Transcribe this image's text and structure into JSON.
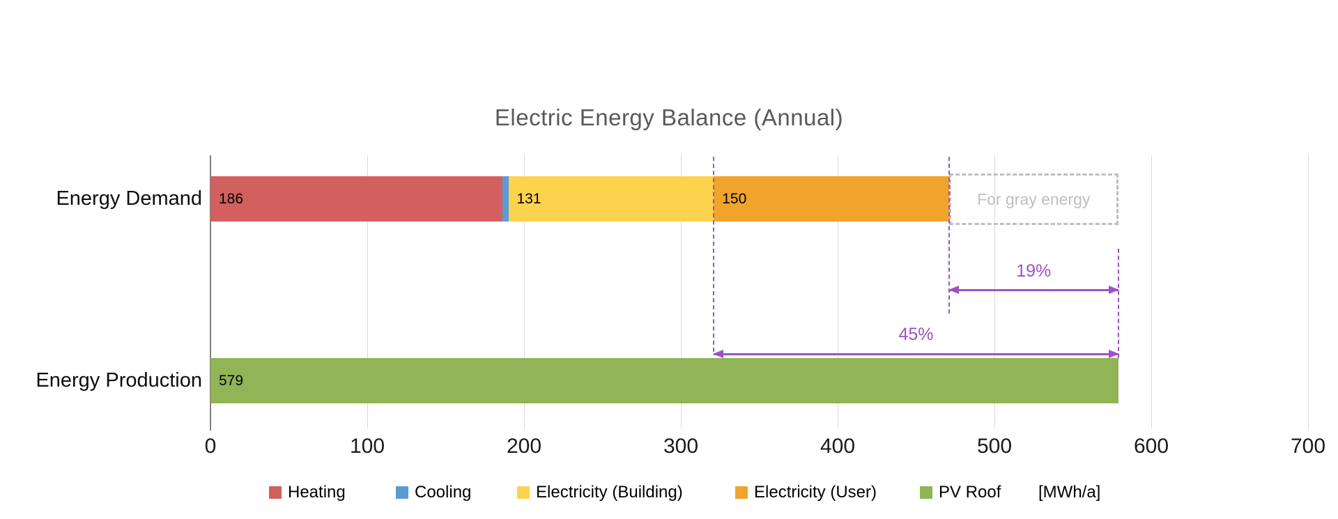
{
  "title": "Electric Energy Balance (Annual)",
  "colors": {
    "heating": "#D2605E",
    "cooling": "#5B9BD5",
    "electricity_building": "#FDD34E",
    "electricity_user": "#F0A42C",
    "pv_roof": "#90B456",
    "annotation_purple": "#9C51C6",
    "gray_dashed": "#BFBFBF",
    "title_text": "#595959",
    "gridline": "#D9D9D9",
    "axis_line": "#7F7F7F"
  },
  "chart_data": {
    "type": "bar",
    "orientation": "horizontal",
    "title": "Electric Energy Balance (Annual)",
    "value_unit": "MWh/a",
    "grid": true,
    "axis": {
      "min": 0,
      "max": 700,
      "step": 100,
      "tick_labels": [
        "0",
        "100",
        "200",
        "300",
        "400",
        "500",
        "600",
        "700"
      ]
    },
    "rows": [
      {
        "category": "Energy Demand",
        "total": 471,
        "segments": [
          {
            "name": "Heating",
            "value": 186,
            "color": "#D2605E",
            "label": "186"
          },
          {
            "name": "Cooling",
            "value": 4,
            "color": "#5B9BD5",
            "label": ""
          },
          {
            "name": "Electricity (Building)",
            "value": 131,
            "color": "#FDD34E",
            "label": "131"
          },
          {
            "name": "Electricity (User)",
            "value": 150,
            "color": "#F0A42C",
            "label": "150"
          }
        ]
      },
      {
        "category": "Energy Production",
        "total": 579,
        "segments": [
          {
            "name": "PV Roof",
            "value": 579,
            "color": "#90B456",
            "label": "579"
          }
        ]
      }
    ],
    "annotations": {
      "gray_box": {
        "label": "For gray energy",
        "from": 471,
        "to": 579
      },
      "dashed_lines": [
        {
          "at": 321
        },
        {
          "at": 471
        },
        {
          "at": 579
        }
      ],
      "arrows": [
        {
          "label": "19%",
          "from": 471,
          "to": 579
        },
        {
          "label": "45%",
          "from": 321,
          "to": 579
        }
      ]
    },
    "legend": [
      {
        "label": "Heating",
        "color": "#D2605E"
      },
      {
        "label": "Cooling",
        "color": "#5B9BD5"
      },
      {
        "label": "Electricity (Building)",
        "color": "#FDD34E"
      },
      {
        "label": "Electricity (User)",
        "color": "#F0A42C"
      },
      {
        "label": "PV Roof",
        "color": "#90B456"
      },
      {
        "label": "[MWh/a]",
        "color": null
      }
    ]
  }
}
